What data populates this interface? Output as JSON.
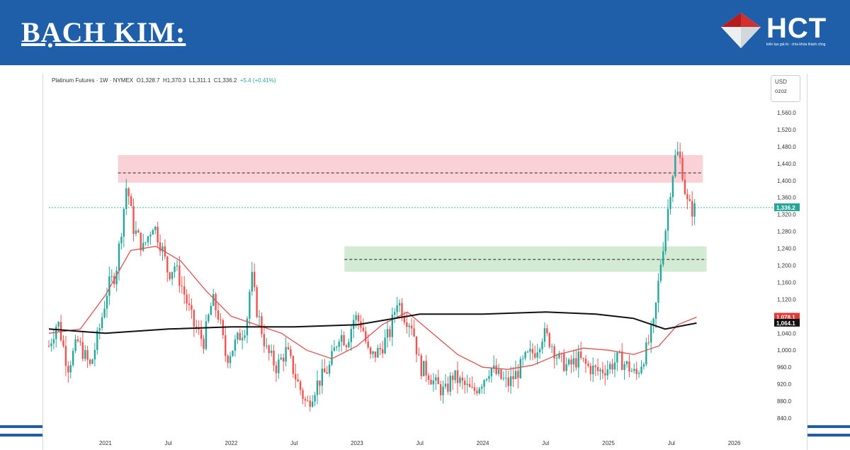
{
  "slide": {
    "title": "BẠCH KIM:",
    "logo_text": "HCT",
    "logo_tagline": "kiến tạo giá trị - chìa khóa thành công"
  },
  "chart_header": {
    "instrument": "Platinum Futures · 1W · NYMEX",
    "open": "O1,328.7",
    "high": "H1,370.3",
    "low": "L1,311.1",
    "close": "C1,336.2",
    "change": "+5.4 (+0.41%)"
  },
  "currency": {
    "unit": "USD",
    "sub": "ozoz"
  },
  "colors": {
    "brand_blue": "#1f5fa9",
    "up": "#26a69a",
    "down": "#ef5350",
    "ma_short": "#e05050",
    "ma_long": "#111111",
    "resistance_zone": "#f8c6cc",
    "support_zone": "#c8e6c9"
  },
  "chart_data": {
    "type": "candlestick",
    "title": "",
    "xlabel": "",
    "ylabel": "",
    "ylim": [
      825,
      1585
    ],
    "y_ticks": [
      "1,560.0",
      "1,520.0",
      "1,480.0",
      "1,440.0",
      "1,400.0",
      "1,360.0",
      "1,320.0",
      "1,280.0",
      "1,240.0",
      "1,200.0",
      "1,160.0",
      "1,120.0",
      "1,080.0",
      "1,040.0",
      "1,000.0",
      "960.0",
      "920.0",
      "880.0",
      "840.0"
    ],
    "y_tick_values": [
      1560,
      1520,
      1480,
      1440,
      1400,
      1360,
      1320,
      1280,
      1240,
      1200,
      1160,
      1120,
      1080,
      1040,
      1000,
      960,
      920,
      880,
      840
    ],
    "x_ticks": [
      "2021",
      "Jul",
      "2022",
      "Jul",
      "2023",
      "Jul",
      "2024",
      "Jul",
      "2025",
      "Jul",
      "2026"
    ],
    "x_tick_values": [
      2021.0,
      2021.5,
      2022.0,
      2022.5,
      2023.0,
      2023.5,
      2024.0,
      2024.5,
      2025.0,
      2025.5,
      2026.0
    ],
    "xlim": [
      2020.55,
      2026.25
    ],
    "price_path": [
      [
        2020.55,
        1010
      ],
      [
        2020.62,
        1070
      ],
      [
        2020.7,
        960
      ],
      [
        2020.78,
        1020
      ],
      [
        2020.88,
        960
      ],
      [
        2020.96,
        1060
      ],
      [
        2021.02,
        1150
      ],
      [
        2021.08,
        1180
      ],
      [
        2021.12,
        1270
      ],
      [
        2021.17,
        1395
      ],
      [
        2021.22,
        1290
      ],
      [
        2021.3,
        1240
      ],
      [
        2021.38,
        1300
      ],
      [
        2021.45,
        1240
      ],
      [
        2021.5,
        1180
      ],
      [
        2021.55,
        1200
      ],
      [
        2021.62,
        1140
      ],
      [
        2021.7,
        1060
      ],
      [
        2021.78,
        1020
      ],
      [
        2021.85,
        1120
      ],
      [
        2021.9,
        1080
      ],
      [
        2021.96,
        980
      ],
      [
        2022.04,
        1020
      ],
      [
        2022.12,
        1060
      ],
      [
        2022.16,
        1180
      ],
      [
        2022.2,
        1100
      ],
      [
        2022.28,
        1000
      ],
      [
        2022.36,
        960
      ],
      [
        2022.44,
        1000
      ],
      [
        2022.52,
        930
      ],
      [
        2022.6,
        870
      ],
      [
        2022.68,
        920
      ],
      [
        2022.78,
        960
      ],
      [
        2022.86,
        1040
      ],
      [
        2022.92,
        1020
      ],
      [
        2022.98,
        1080
      ],
      [
        2023.04,
        1060
      ],
      [
        2023.1,
        980
      ],
      [
        2023.18,
        1000
      ],
      [
        2023.26,
        1040
      ],
      [
        2023.32,
        1120
      ],
      [
        2023.38,
        1080
      ],
      [
        2023.44,
        1060
      ],
      [
        2023.5,
        960
      ],
      [
        2023.56,
        950
      ],
      [
        2023.62,
        920
      ],
      [
        2023.7,
        900
      ],
      [
        2023.76,
        940
      ],
      [
        2023.84,
        920
      ],
      [
        2023.92,
        900
      ],
      [
        2024.0,
        930
      ],
      [
        2024.06,
        960
      ],
      [
        2024.12,
        940
      ],
      [
        2024.2,
        920
      ],
      [
        2024.28,
        950
      ],
      [
        2024.34,
        980
      ],
      [
        2024.42,
        1000
      ],
      [
        2024.48,
        1040
      ],
      [
        2024.54,
        1020
      ],
      [
        2024.6,
        980
      ],
      [
        2024.68,
        960
      ],
      [
        2024.76,
        980
      ],
      [
        2024.84,
        960
      ],
      [
        2024.92,
        950
      ],
      [
        2025.0,
        960
      ],
      [
        2025.08,
        980
      ],
      [
        2025.16,
        960
      ],
      [
        2025.22,
        940
      ],
      [
        2025.3,
        1000
      ],
      [
        2025.36,
        1060
      ],
      [
        2025.42,
        1220
      ],
      [
        2025.46,
        1300
      ],
      [
        2025.5,
        1400
      ],
      [
        2025.54,
        1470
      ],
      [
        2025.58,
        1440
      ],
      [
        2025.62,
        1350
      ],
      [
        2025.66,
        1330
      ],
      [
        2025.7,
        1336
      ]
    ],
    "ma_short_points": [
      [
        2020.55,
        1040
      ],
      [
        2020.8,
        1050
      ],
      [
        2021.0,
        1130
      ],
      [
        2021.2,
        1235
      ],
      [
        2021.4,
        1245
      ],
      [
        2021.6,
        1210
      ],
      [
        2021.8,
        1140
      ],
      [
        2022.0,
        1080
      ],
      [
        2022.2,
        1060
      ],
      [
        2022.4,
        1040
      ],
      [
        2022.6,
        1000
      ],
      [
        2022.8,
        980
      ],
      [
        2023.0,
        1010
      ],
      [
        2023.2,
        1060
      ],
      [
        2023.4,
        1090
      ],
      [
        2023.6,
        1040
      ],
      [
        2023.8,
        990
      ],
      [
        2024.0,
        960
      ],
      [
        2024.2,
        955
      ],
      [
        2024.4,
        965
      ],
      [
        2024.6,
        990
      ],
      [
        2024.8,
        1005
      ],
      [
        2025.0,
        1000
      ],
      [
        2025.2,
        990
      ],
      [
        2025.4,
        1010
      ],
      [
        2025.55,
        1060
      ],
      [
        2025.7,
        1078
      ]
    ],
    "ma_long_points": [
      [
        2020.55,
        1050
      ],
      [
        2021.0,
        1040
      ],
      [
        2021.5,
        1050
      ],
      [
        2022.0,
        1055
      ],
      [
        2022.5,
        1055
      ],
      [
        2023.0,
        1060
      ],
      [
        2023.5,
        1085
      ],
      [
        2024.0,
        1085
      ],
      [
        2024.5,
        1090
      ],
      [
        2024.9,
        1085
      ],
      [
        2025.2,
        1075
      ],
      [
        2025.45,
        1050
      ],
      [
        2025.7,
        1064
      ]
    ],
    "zones": [
      {
        "name": "resistance",
        "from": 2021.1,
        "to": 2025.75,
        "low": 1395,
        "high": 1460,
        "mid": 1418
      },
      {
        "name": "support",
        "from": 2022.9,
        "to": 2025.78,
        "low": 1185,
        "high": 1245,
        "mid": 1214
      }
    ],
    "last_price_line": 1336.2,
    "price_labels": [
      {
        "text": "1,336.2",
        "value": 1336.2,
        "color": "#26a69a"
      },
      {
        "text": "1,078.1",
        "value": 1078.1,
        "color": "#e53935"
      },
      {
        "text": "1,064.1",
        "value": 1064.1,
        "color": "#111111"
      }
    ]
  }
}
